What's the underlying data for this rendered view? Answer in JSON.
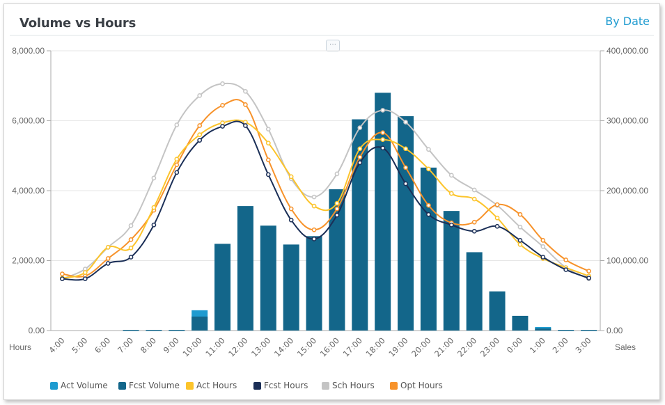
{
  "header": {
    "title": "Volume vs Hours",
    "by_date_link": "By Date",
    "more_button": "···"
  },
  "colors": {
    "act_volume": "#1e9bd0",
    "fcst_volume": "#13668a",
    "act_hours": "#fcc42b",
    "fcst_hours": "#1b2f57",
    "sch_hours": "#c4c4c4",
    "opt_hours": "#f7922a",
    "link": "#1e9bd0"
  },
  "chart_data": {
    "type": "bar",
    "title": "Volume vs Hours",
    "xlabel": "Hours",
    "ylabel_right": "Sales",
    "ylim_left": [
      0,
      8000
    ],
    "ylim_right": [
      0,
      400000
    ],
    "yticks_left": [
      "0.00",
      "2,000.00",
      "4,000.00",
      "6,000.00",
      "8,000.00"
    ],
    "yticks_right": [
      "0.00",
      "100,000.00",
      "200,000.00",
      "300,000.00",
      "400,000.00"
    ],
    "grid": true,
    "legend_position": "bottom",
    "categories": [
      "4:00",
      "5:00",
      "6:00",
      "7:00",
      "8:00",
      "9:00",
      "10:00",
      "11:00",
      "12:00",
      "13:00",
      "14:00",
      "15:00",
      "16:00",
      "17:00",
      "18:00",
      "19:00",
      "20:00",
      "21:00",
      "22:00",
      "23:00",
      "0:00",
      "1:00",
      "2:00",
      "3:00"
    ],
    "series": [
      {
        "name": "Act Volume",
        "type": "bar",
        "color_key": "act_volume",
        "values": [
          0,
          0,
          0,
          0,
          0,
          0,
          580,
          0,
          0,
          0,
          0,
          0,
          0,
          0,
          0,
          0,
          0,
          0,
          0,
          0,
          0,
          100,
          0,
          0
        ]
      },
      {
        "name": "Fcst Volume",
        "type": "bar",
        "color_key": "fcst_volume",
        "values": [
          0,
          0,
          0,
          20,
          20,
          20,
          400,
          2480,
          3560,
          3000,
          2460,
          2700,
          4040,
          6040,
          6800,
          6130,
          4660,
          3420,
          2240,
          1120,
          420,
          60,
          20,
          20
        ]
      },
      {
        "name": "Act Hours",
        "type": "line",
        "color_key": "act_hours",
        "values": [
          1500,
          1660,
          2380,
          2360,
          3520,
          4900,
          5600,
          5940,
          5960,
          5360,
          4400,
          3560,
          3640,
          5200,
          5460,
          5200,
          4620,
          3920,
          3760,
          3220,
          2460,
          2060,
          1800,
          1560
        ]
      },
      {
        "name": "Fcst Hours",
        "type": "line",
        "color_key": "fcst_hours",
        "values": [
          1480,
          1480,
          1920,
          2100,
          3020,
          4520,
          5440,
          5840,
          5860,
          4460,
          3160,
          2620,
          3300,
          4800,
          5220,
          4200,
          3320,
          3020,
          2840,
          2980,
          2580,
          2100,
          1740,
          1500
        ]
      },
      {
        "name": "Sch Hours",
        "type": "line",
        "color_key": "sch_hours",
        "values": [
          1480,
          1760,
          2380,
          3000,
          4360,
          5880,
          6720,
          7060,
          6840,
          5760,
          4340,
          3820,
          4480,
          5800,
          6300,
          5960,
          5180,
          4440,
          4020,
          3580,
          2960,
          2400,
          1800,
          1480
        ]
      },
      {
        "name": "Opt Hours",
        "type": "line",
        "color_key": "opt_hours",
        "values": [
          1620,
          1560,
          2060,
          2600,
          3440,
          4740,
          5860,
          6440,
          6460,
          4880,
          3480,
          2880,
          3480,
          4960,
          5660,
          4660,
          3580,
          3080,
          3100,
          3600,
          3320,
          2580,
          2020,
          1700
        ]
      }
    ]
  }
}
